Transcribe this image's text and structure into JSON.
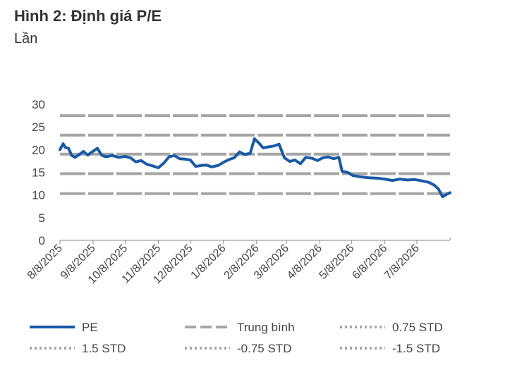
{
  "title": "Hình 2: Định giá P/E",
  "subtitle": "Lần",
  "chart_data": {
    "type": "line",
    "x_ticks": [
      "8/8/2025",
      "9/8/2025",
      "10/8/2025",
      "11/8/2025",
      "12/8/2025",
      "1/8/2026",
      "2/8/2026",
      "3/8/2026",
      "4/8/2026",
      "5/8/2026",
      "6/8/2026",
      "7/8/2026"
    ],
    "y_ticks": [
      0,
      5,
      10,
      15,
      20,
      25,
      30
    ],
    "ylim": [
      0,
      30
    ],
    "grid": false,
    "legend_position": "bottom",
    "colors": {
      "pe": "#1a5aa6",
      "bands": "#a6a6a6"
    },
    "reference_lines": [
      {
        "name": "Trung bình",
        "style": "dashed",
        "value": 19.0
      },
      {
        "name": "0.75 STD",
        "style": "dotted",
        "value": 23.2
      },
      {
        "name": "1.5 STD",
        "style": "dotted",
        "value": 27.5
      },
      {
        "name": "-0.75 STD",
        "style": "dotted",
        "value": 14.7
      },
      {
        "name": "-1.5 STD",
        "style": "dotted",
        "value": 10.3
      }
    ],
    "series": [
      {
        "name": "PE",
        "points": [
          [
            "2025-08-08",
            20.0
          ],
          [
            "2025-08-11",
            21.3
          ],
          [
            "2025-08-13",
            20.5
          ],
          [
            "2025-08-16",
            20.3
          ],
          [
            "2025-08-19",
            18.7
          ],
          [
            "2025-08-22",
            18.3
          ],
          [
            "2025-08-26",
            18.9
          ],
          [
            "2025-08-30",
            19.6
          ],
          [
            "2025-09-03",
            18.8
          ],
          [
            "2025-09-07",
            19.5
          ],
          [
            "2025-09-12",
            20.3
          ],
          [
            "2025-09-16",
            18.8
          ],
          [
            "2025-09-20",
            18.4
          ],
          [
            "2025-09-26",
            18.7
          ],
          [
            "2025-10-02",
            18.3
          ],
          [
            "2025-10-08",
            18.5
          ],
          [
            "2025-10-13",
            18.2
          ],
          [
            "2025-10-18",
            17.3
          ],
          [
            "2025-10-23",
            17.6
          ],
          [
            "2025-10-28",
            16.8
          ],
          [
            "2025-11-03",
            16.4
          ],
          [
            "2025-11-08",
            16.0
          ],
          [
            "2025-11-13",
            17.0
          ],
          [
            "2025-11-18",
            18.4
          ],
          [
            "2025-11-23",
            18.7
          ],
          [
            "2025-11-28",
            18.0
          ],
          [
            "2025-12-03",
            17.9
          ],
          [
            "2025-12-08",
            17.7
          ],
          [
            "2025-12-13",
            16.3
          ],
          [
            "2025-12-18",
            16.5
          ],
          [
            "2025-12-23",
            16.6
          ],
          [
            "2025-12-28",
            16.2
          ],
          [
            "2026-01-03",
            16.5
          ],
          [
            "2026-01-08",
            17.2
          ],
          [
            "2026-01-13",
            17.8
          ],
          [
            "2026-01-18",
            18.2
          ],
          [
            "2026-01-23",
            19.5
          ],
          [
            "2026-01-28",
            18.9
          ],
          [
            "2026-02-02",
            19.2
          ],
          [
            "2026-02-06",
            22.4
          ],
          [
            "2026-02-10",
            21.5
          ],
          [
            "2026-02-14",
            20.4
          ],
          [
            "2026-02-19",
            20.6
          ],
          [
            "2026-02-24",
            20.8
          ],
          [
            "2026-03-01",
            21.2
          ],
          [
            "2026-03-06",
            18.2
          ],
          [
            "2026-03-11",
            17.4
          ],
          [
            "2026-03-16",
            17.7
          ],
          [
            "2026-03-21",
            16.9
          ],
          [
            "2026-03-26",
            18.3
          ],
          [
            "2026-04-01",
            18.1
          ],
          [
            "2026-04-06",
            17.6
          ],
          [
            "2026-04-11",
            18.2
          ],
          [
            "2026-04-16",
            18.4
          ],
          [
            "2026-04-21",
            18.0
          ],
          [
            "2026-04-26",
            18.3
          ],
          [
            "2026-04-29",
            15.2
          ],
          [
            "2026-05-04",
            15.0
          ],
          [
            "2026-05-09",
            14.3
          ],
          [
            "2026-05-16",
            14.0
          ],
          [
            "2026-05-24",
            13.8
          ],
          [
            "2026-06-01",
            13.7
          ],
          [
            "2026-06-08",
            13.5
          ],
          [
            "2026-06-15",
            13.2
          ],
          [
            "2026-06-22",
            13.5
          ],
          [
            "2026-06-29",
            13.3
          ],
          [
            "2026-07-06",
            13.4
          ],
          [
            "2026-07-13",
            13.1
          ],
          [
            "2026-07-19",
            12.8
          ],
          [
            "2026-07-24",
            12.2
          ],
          [
            "2026-07-28",
            11.4
          ],
          [
            "2026-08-01",
            9.6
          ],
          [
            "2026-08-05",
            10.2
          ],
          [
            "2026-08-08",
            10.5
          ]
        ]
      }
    ]
  }
}
